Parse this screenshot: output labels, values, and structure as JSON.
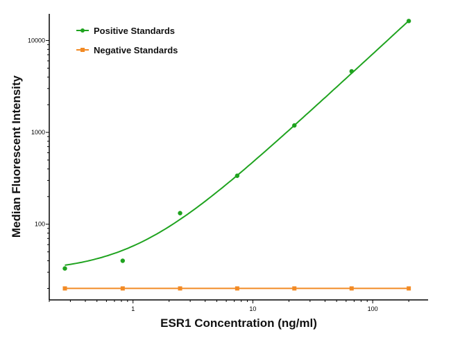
{
  "chart_data": {
    "type": "scatter",
    "xlabel": "ESR1 Concentration (ng/ml)",
    "ylabel": "Median Fluorescent Intensity",
    "xscale": "log",
    "yscale": "log",
    "xlim": [
      0.2,
      290
    ],
    "ylim": [
      15,
      19500
    ],
    "xticks": [
      "1",
      "10",
      "100"
    ],
    "yticks": [
      "100",
      "1000",
      "10000"
    ],
    "grid": false,
    "legend_position": "top-left",
    "series": [
      {
        "name": "Positive Standards",
        "color": "#1fa31f",
        "marker": "circle",
        "line": "fitted curve",
        "x": [
          0.27,
          0.82,
          2.47,
          7.4,
          22.2,
          66.7,
          200
        ],
        "y": [
          33,
          40,
          132,
          337,
          1190,
          4620,
          16300
        ]
      },
      {
        "name": "Negative Standards",
        "color": "#f28a24",
        "marker": "square",
        "line": "connected",
        "x": [
          0.27,
          0.82,
          2.47,
          7.4,
          22.2,
          66.7,
          200
        ],
        "y": [
          20,
          20,
          20,
          20,
          20,
          20,
          20
        ]
      }
    ]
  }
}
